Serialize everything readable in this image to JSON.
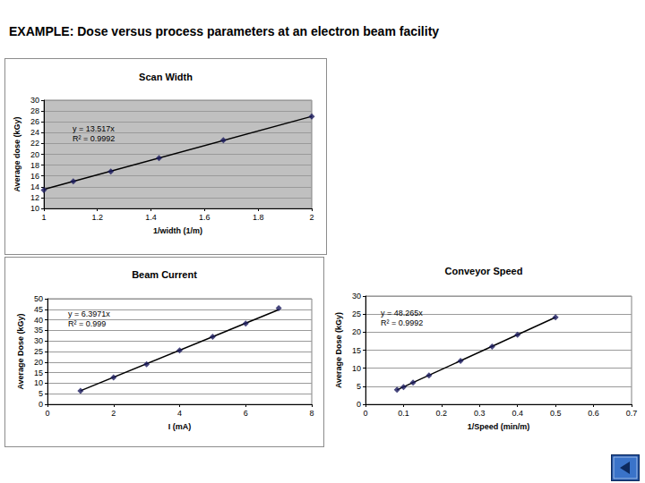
{
  "heading": "EXAMPLE: Dose versus process parameters at an electron beam facility",
  "chart_data": [
    {
      "type": "scatter",
      "title": "Scan Width",
      "x_label": "1/width (1/m)",
      "y_label": "Average dose (kGy)",
      "annotations": [
        "y = 13.517x",
        "R² = 0.9992"
      ],
      "xlim": [
        1,
        2
      ],
      "xticks": [
        1,
        1.2,
        1.4,
        1.6,
        1.8,
        2
      ],
      "ylim": [
        10,
        30
      ],
      "yticks": [
        10,
        12,
        14,
        16,
        18,
        20,
        22,
        24,
        26,
        28,
        30
      ],
      "grid": true,
      "series": [
        {
          "type": "scatter",
          "color": "#1a1a5e",
          "marker": "diamond",
          "x": [
            1,
            1.11,
            1.25,
            1.43,
            1.67,
            2
          ],
          "values": [
            13.4,
            15.0,
            16.8,
            19.3,
            22.6,
            27.0
          ]
        },
        {
          "type": "line",
          "color": "#000000",
          "line_style": "solid",
          "x": [
            1,
            2
          ],
          "values": [
            13.5,
            27.0
          ]
        }
      ]
    },
    {
      "type": "scatter",
      "title": "Beam Current",
      "x_label": "I (mA)",
      "y_label": "Average Dose (kGy)",
      "annotations": [
        "y = 6.3971x",
        "R² = 0.999"
      ],
      "xlim": [
        0,
        8
      ],
      "xticks": [
        0,
        2,
        4,
        6,
        8
      ],
      "ylim": [
        0,
        50
      ],
      "yticks": [
        0,
        5,
        10,
        15,
        20,
        25,
        30,
        35,
        40,
        45,
        50
      ],
      "grid": true,
      "series": [
        {
          "type": "scatter",
          "color": "#1a1a5e",
          "marker": "diamond",
          "x": [
            1,
            2,
            3,
            4,
            5,
            6,
            7
          ],
          "values": [
            6.4,
            12.7,
            19.0,
            25.5,
            32.0,
            38.2,
            45.5
          ]
        },
        {
          "type": "line",
          "color": "#000000",
          "line_style": "solid",
          "x": [
            1,
            7
          ],
          "values": [
            6.4,
            44.8
          ]
        }
      ]
    },
    {
      "type": "scatter",
      "title": "Conveyor Speed",
      "x_label": "1/Speed (min/m)",
      "y_label": "Average Dose (kGy)",
      "annotations": [
        "y = 48.265x",
        "R² = 0.9992"
      ],
      "xlim": [
        0,
        0.7
      ],
      "xticks": [
        0,
        0.1,
        0.2,
        0.3,
        0.4,
        0.5,
        0.6,
        0.7
      ],
      "ylim": [
        0,
        30
      ],
      "yticks": [
        0,
        5,
        10,
        15,
        20,
        25,
        30
      ],
      "grid": true,
      "series": [
        {
          "type": "scatter",
          "color": "#1a1a5e",
          "marker": "diamond",
          "x": [
            0.083,
            0.1,
            0.125,
            0.167,
            0.25,
            0.333,
            0.4,
            0.5
          ],
          "values": [
            4.0,
            4.8,
            6.0,
            8.0,
            12.0,
            16.0,
            19.3,
            24.1
          ]
        },
        {
          "type": "line",
          "color": "#000000",
          "line_style": "solid",
          "x": [
            0.083,
            0.5
          ],
          "values": [
            4.0,
            24.1
          ]
        }
      ]
    }
  ]
}
